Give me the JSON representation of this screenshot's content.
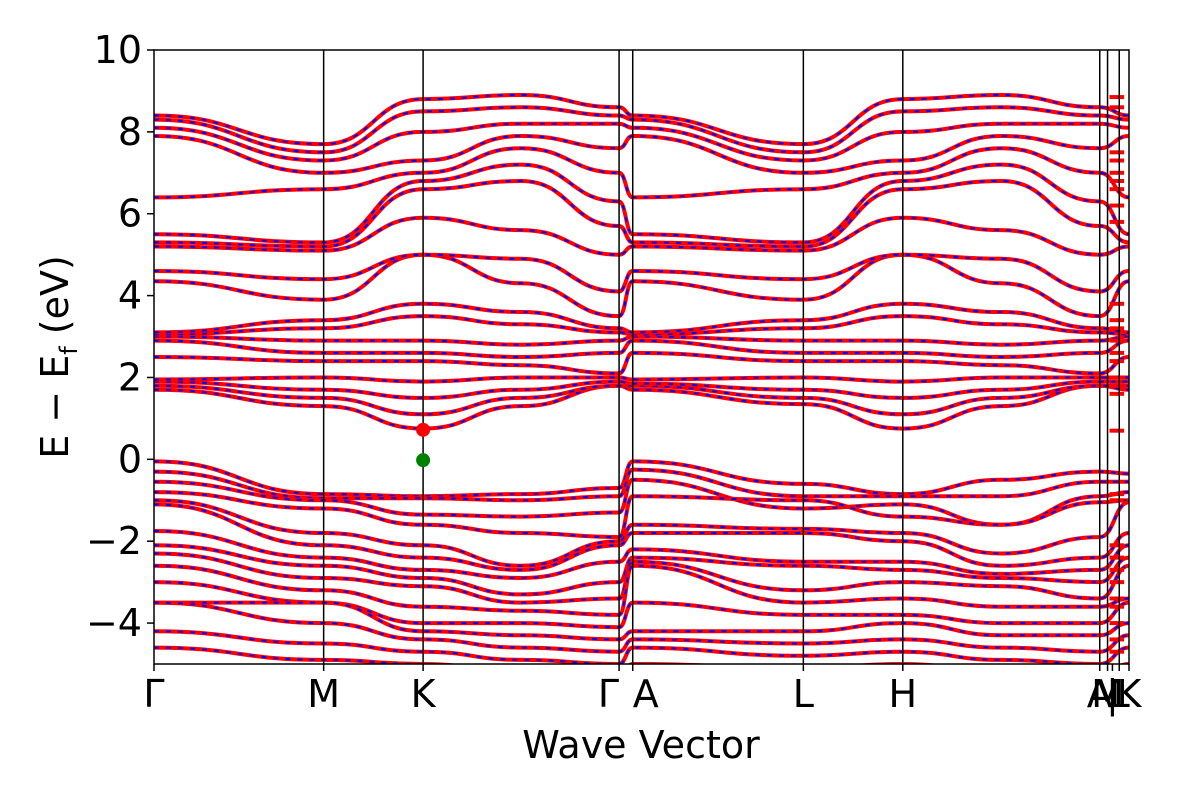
{
  "chart_data": {
    "type": "line",
    "title": "",
    "xlabel": "Wave Vector",
    "ylabel": {
      "main": "E − E",
      "subscript": "f",
      "unit": " (eV)"
    },
    "ylim": [
      -5,
      10
    ],
    "yticks": [
      -4,
      -2,
      0,
      2,
      4,
      6,
      8,
      10
    ],
    "ytick_labels": [
      "−4",
      "−2",
      "0",
      "2",
      "4",
      "6",
      "8",
      "10"
    ],
    "x_range": [
      0,
      1
    ],
    "kpoints": [
      {
        "x": 0.0,
        "label": "Γ",
        "text_anchor": "middle"
      },
      {
        "x": 0.174,
        "label": "M",
        "text_anchor": "middle"
      },
      {
        "x": 0.276,
        "label": "K",
        "text_anchor": "middle"
      },
      {
        "x": 0.477,
        "label": "Γ",
        "text_anchor": "end"
      },
      {
        "x": 0.491,
        "label": "A",
        "text_anchor": "start"
      },
      {
        "x": 0.666,
        "label": "L",
        "text_anchor": "middle"
      },
      {
        "x": 0.768,
        "label": "H",
        "text_anchor": "middle"
      },
      {
        "x": 0.97,
        "label": "A",
        "text_anchor": "middle"
      },
      {
        "x": 0.978,
        "label": "M",
        "text_anchor": "middle"
      },
      {
        "x": 0.983,
        "label": "|",
        "text_anchor": "middle"
      },
      {
        "x": 0.99,
        "label": "L",
        "text_anchor": "middle"
      },
      {
        "x": 1.0,
        "label": "K",
        "text_anchor": "middle"
      }
    ],
    "band_color_main": "#ff0000",
    "band_color_overlay": "#0000ff",
    "valence_bands": [
      {
        "name": "v1",
        "y": [
          -0.05,
          -0.85,
          -0.9,
          -0.85,
          -0.7,
          -0.05,
          -0.6,
          -0.85,
          -0.5,
          -0.3,
          -0.35
        ]
      },
      {
        "name": "v2",
        "y": [
          -0.3,
          -0.95,
          -0.95,
          -1.0,
          -0.9,
          -0.25,
          -0.9,
          -0.9,
          -0.9,
          -0.55,
          -0.55
        ]
      },
      {
        "name": "v3",
        "y": [
          -0.55,
          -1.0,
          -1.35,
          -1.4,
          -1.3,
          -0.5,
          -1.2,
          -1.1,
          -1.6,
          -0.9,
          -0.8
        ]
      },
      {
        "name": "v4",
        "y": [
          -0.8,
          -1.2,
          -1.6,
          -1.8,
          -1.9,
          -0.9,
          -1.0,
          -1.4,
          -1.6,
          -1.05,
          -1.0
        ]
      },
      {
        "name": "v5",
        "y": [
          -1.0,
          -1.8,
          -2.1,
          -2.6,
          -2.0,
          -1.6,
          -1.7,
          -1.8,
          -2.3,
          -1.9,
          -1.05
        ]
      },
      {
        "name": "v6",
        "y": [
          -1.1,
          -2.1,
          -2.4,
          -2.7,
          -2.1,
          -1.8,
          -1.8,
          -2.0,
          -2.6,
          -2.4,
          -1.8
        ]
      },
      {
        "name": "v7",
        "y": [
          -1.75,
          -2.4,
          -2.7,
          -2.9,
          -2.5,
          -2.2,
          -2.5,
          -2.5,
          -2.8,
          -2.7,
          -2.1
        ]
      },
      {
        "name": "v8",
        "y": [
          -2.1,
          -2.6,
          -2.9,
          -3.3,
          -3.0,
          -2.4,
          -2.6,
          -2.7,
          -2.9,
          -3.0,
          -2.4
        ]
      },
      {
        "name": "v9",
        "y": [
          -2.3,
          -2.9,
          -3.1,
          -3.5,
          -3.4,
          -2.5,
          -3.2,
          -3.0,
          -3.1,
          -3.4,
          -2.6
        ]
      },
      {
        "name": "v10",
        "y": [
          -2.6,
          -3.2,
          -3.6,
          -3.7,
          -3.8,
          -2.6,
          -3.5,
          -3.4,
          -3.6,
          -3.6,
          -3.4
        ]
      },
      {
        "name": "v11",
        "y": [
          -3.0,
          -3.5,
          -4.0,
          -4.0,
          -4.1,
          -3.5,
          -3.8,
          -3.8,
          -4.0,
          -4.0,
          -3.5
        ]
      },
      {
        "name": "v12",
        "y": [
          -3.5,
          -3.5,
          -4.2,
          -4.3,
          -4.4,
          -4.2,
          -4.2,
          -4.0,
          -4.3,
          -4.3,
          -4.0
        ]
      },
      {
        "name": "v13",
        "y": [
          -3.5,
          -4.0,
          -4.4,
          -4.6,
          -4.7,
          -4.4,
          -4.5,
          -4.4,
          -4.6,
          -4.7,
          -4.3
        ]
      },
      {
        "name": "v14",
        "y": [
          -4.2,
          -4.5,
          -4.7,
          -4.9,
          -5.0,
          -4.6,
          -4.8,
          -4.7,
          -4.9,
          -5.0,
          -4.6
        ]
      },
      {
        "name": "v15",
        "y": [
          -4.6,
          -4.9,
          -5.0,
          -5.2,
          -5.3,
          -5.0,
          -5.1,
          -5.0,
          -5.2,
          -5.3,
          -5.0
        ]
      }
    ],
    "conduction_bands": [
      {
        "name": "c1",
        "y": [
          1.7,
          1.3,
          0.75,
          1.3,
          1.8,
          1.7,
          1.35,
          0.75,
          1.3,
          1.8,
          1.7
        ]
      },
      {
        "name": "c2",
        "y": [
          1.8,
          1.5,
          1.1,
          1.5,
          1.8,
          1.8,
          1.5,
          1.1,
          1.5,
          1.8,
          1.8
        ]
      },
      {
        "name": "c3",
        "y": [
          1.9,
          1.7,
          1.5,
          1.7,
          1.9,
          1.85,
          1.7,
          1.5,
          1.7,
          1.9,
          1.9
        ]
      },
      {
        "name": "c4",
        "y": [
          1.95,
          2.0,
          1.9,
          2.0,
          2.0,
          1.95,
          2.0,
          1.9,
          2.0,
          2.0,
          2.0
        ]
      },
      {
        "name": "c5",
        "y": [
          2.5,
          2.4,
          2.4,
          2.3,
          2.1,
          2.6,
          2.4,
          2.4,
          2.3,
          2.1,
          2.5
        ]
      },
      {
        "name": "c6",
        "y": [
          2.9,
          2.6,
          2.6,
          2.5,
          2.6,
          2.9,
          2.6,
          2.6,
          2.5,
          2.6,
          2.9
        ]
      },
      {
        "name": "c7",
        "y": [
          3.0,
          2.9,
          2.9,
          2.8,
          2.9,
          3.0,
          2.9,
          2.9,
          2.8,
          2.9,
          3.0
        ]
      },
      {
        "name": "c8",
        "y": [
          3.05,
          3.2,
          3.5,
          3.3,
          3.1,
          3.05,
          3.2,
          3.5,
          3.3,
          3.1,
          3.05
        ]
      },
      {
        "name": "c9",
        "y": [
          3.1,
          3.4,
          3.8,
          3.6,
          3.2,
          3.1,
          3.4,
          3.8,
          3.6,
          3.2,
          3.1
        ]
      },
      {
        "name": "c10",
        "y": [
          4.35,
          3.9,
          5.0,
          4.3,
          3.5,
          4.35,
          3.9,
          5.0,
          4.3,
          3.5,
          4.35
        ]
      },
      {
        "name": "c11",
        "y": [
          4.6,
          4.4,
          5.0,
          4.9,
          4.1,
          4.6,
          4.4,
          5.0,
          4.9,
          4.1,
          4.6
        ]
      },
      {
        "name": "c12",
        "y": [
          5.2,
          5.1,
          5.9,
          5.6,
          5.0,
          5.2,
          5.1,
          5.9,
          5.6,
          5.0,
          5.2
        ]
      },
      {
        "name": "c13",
        "y": [
          5.3,
          5.2,
          6.6,
          6.8,
          5.7,
          5.3,
          5.2,
          6.6,
          6.8,
          5.7,
          5.3
        ]
      },
      {
        "name": "c14",
        "y": [
          5.5,
          5.3,
          6.8,
          7.2,
          6.3,
          5.5,
          5.3,
          6.8,
          7.2,
          6.3,
          5.5
        ]
      },
      {
        "name": "c15",
        "y": [
          6.4,
          6.6,
          7.0,
          7.6,
          7.0,
          6.4,
          6.6,
          7.0,
          7.6,
          7.0,
          6.4
        ]
      },
      {
        "name": "c16",
        "y": [
          7.9,
          7.0,
          7.3,
          7.9,
          7.6,
          7.9,
          7.0,
          7.3,
          7.9,
          7.6,
          7.9
        ]
      },
      {
        "name": "c17",
        "y": [
          8.1,
          7.3,
          8.0,
          8.2,
          8.2,
          8.1,
          7.3,
          8.0,
          8.2,
          8.2,
          8.1
        ]
      },
      {
        "name": "c18",
        "y": [
          8.3,
          7.5,
          8.5,
          8.6,
          8.4,
          8.3,
          7.5,
          8.5,
          8.6,
          8.4,
          8.3
        ]
      },
      {
        "name": "c19",
        "y": [
          8.4,
          7.7,
          8.8,
          8.9,
          8.6,
          8.4,
          7.7,
          8.8,
          8.9,
          8.6,
          8.4
        ]
      }
    ],
    "band_edge_markers": [
      {
        "name": "cbm",
        "x": 0.276,
        "y": 0.72,
        "color": "#ff0000"
      },
      {
        "name": "vbm",
        "x": 0.276,
        "y": -0.02,
        "color": "#008000"
      }
    ],
    "tick_row_segments": {
      "x_start": 0.98,
      "x_end": 0.995,
      "y": [
        8.85,
        8.6,
        7.5,
        7.3,
        7.0,
        6.8,
        6.6,
        6.2,
        5.8,
        3.8,
        3.4,
        3.2,
        2.9,
        2.6,
        2.4,
        2.0,
        1.8,
        1.6,
        0.7,
        -0.85,
        -1.0,
        -2.1,
        -2.4,
        -2.7,
        -3.0,
        -3.4,
        -3.6,
        -4.0,
        -4.4,
        -4.7
      ]
    }
  }
}
